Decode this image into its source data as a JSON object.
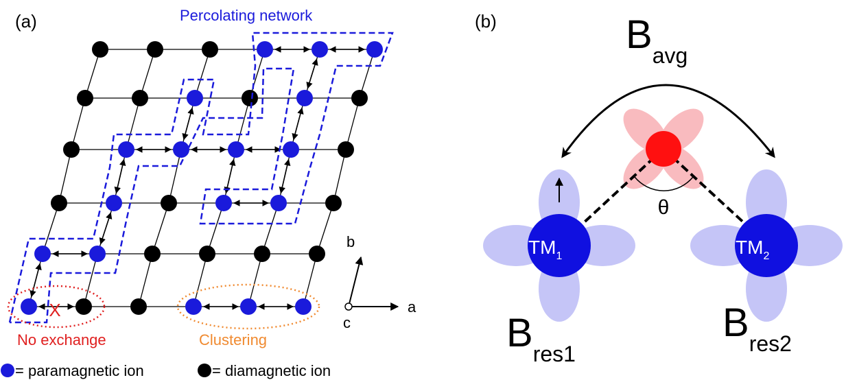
{
  "panel_a": {
    "label": "(a)",
    "network_label": "Percolating network",
    "no_exchange_label": "No exchange",
    "no_exchange_mark": "X",
    "clustering_label": "Clustering",
    "axes": {
      "a": "a",
      "b": "b",
      "c": "c"
    },
    "legend": {
      "paramagnetic": "= paramagnetic ion",
      "diamagnetic": "= diamagnetic ion"
    }
  },
  "panel_b": {
    "label": "(b)",
    "b_avg": {
      "main": "B",
      "sub": "avg"
    },
    "theta": "θ",
    "tm1": {
      "main": "TM",
      "sub": "1"
    },
    "tm2": {
      "main": "TM",
      "sub": "2"
    },
    "b_res1": {
      "main": "B",
      "sub": "res1"
    },
    "b_res2": {
      "main": "B",
      "sub": "res2"
    }
  }
}
